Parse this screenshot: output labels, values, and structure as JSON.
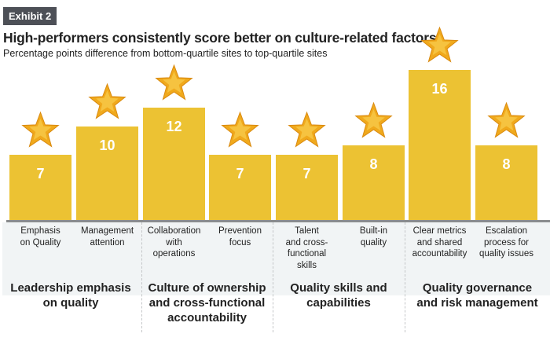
{
  "exhibit_label": "Exhibit 2",
  "chart_data": {
    "type": "bar",
    "title": "High-performers consistently score better on culture-related factors",
    "subtitle": "Percentage points difference from bottom-quartile sites to top-quartile sites",
    "categories": [
      "Emphasis on Quality",
      "Management attention",
      "Collaboration with operations",
      "Prevention focus",
      "Talent and cross-functional skills",
      "Built-in quality",
      "Clear metrics and shared accountability",
      "Escalation process for quality issues"
    ],
    "category_lines": [
      [
        "Emphasis",
        "on Quality"
      ],
      [
        "Management",
        "attention"
      ],
      [
        "Collaboration",
        "with",
        "operations"
      ],
      [
        "Prevention",
        "focus"
      ],
      [
        "Talent",
        "and cross-",
        "functional",
        "skills"
      ],
      [
        "Built-in",
        "quality"
      ],
      [
        "Clear metrics",
        "and shared",
        "accountability"
      ],
      [
        "Escalation",
        "process for",
        "quality issues"
      ]
    ],
    "values": [
      7,
      10,
      12,
      7,
      7,
      8,
      16,
      8
    ],
    "data_labels": [
      "7",
      "10",
      "12",
      "7",
      "7",
      "8",
      "16",
      "8"
    ],
    "groups": [
      {
        "label": "Leadership emphasis on quality",
        "lines": [
          "Leadership emphasis",
          "on quality"
        ],
        "categories": [
          0,
          1
        ]
      },
      {
        "label": "Culture of ownership and cross-functional accountability",
        "lines": [
          "Culture of ownership",
          "and cross-functional",
          "accountability"
        ],
        "categories": [
          2,
          3
        ]
      },
      {
        "label": "Quality skills and capabilities",
        "lines": [
          "Quality skills and",
          "capabilities"
        ],
        "categories": [
          4,
          5
        ]
      },
      {
        "label": "Quality governance and risk management",
        "lines": [
          "Quality governance",
          "and risk management"
        ],
        "categories": [
          6,
          7
        ]
      }
    ],
    "ylim": [
      0,
      16
    ],
    "grid": false,
    "marker_above_bars": "star-icon",
    "colors": {
      "bar": "#ecc233",
      "star": "#f0a91c",
      "value_text": "#ffffff",
      "axis": "#8a8c8e",
      "band": "#f1f4f5"
    }
  }
}
